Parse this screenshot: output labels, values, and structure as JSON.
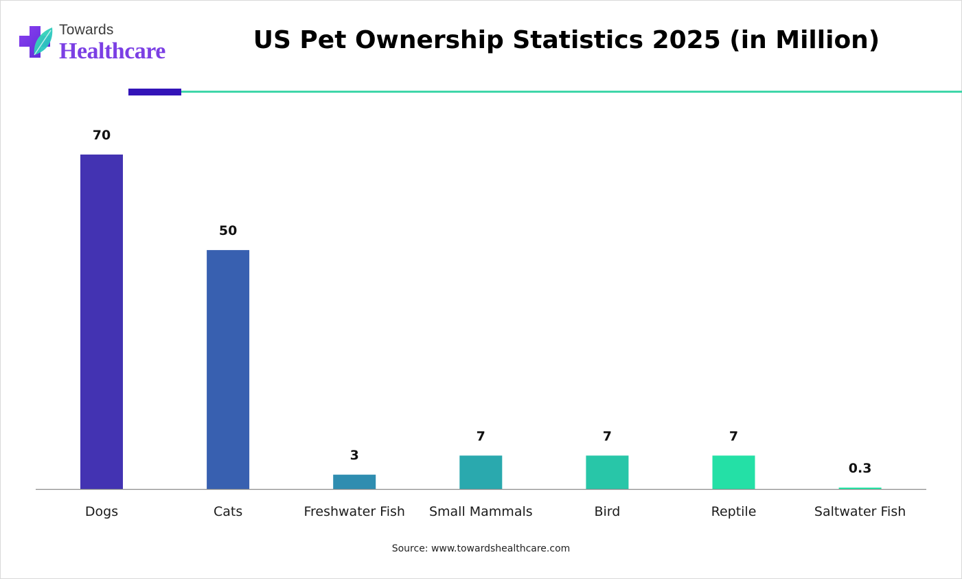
{
  "brand": {
    "towards": "Towards",
    "healthcare": "Healthcare"
  },
  "source": "Source: www.towardshealthcare.com",
  "colors": {
    "accent_purple": "#3314b8",
    "accent_teal": "#3fd6a9",
    "brand_purple": "#7b3fe4"
  },
  "chart_data": {
    "type": "bar",
    "title": "US Pet Ownership Statistics 2025 (in Million)",
    "categories": [
      "Dogs",
      "Cats",
      "Freshwater Fish",
      "Small Mammals",
      "Bird",
      "Reptile",
      "Saltwater Fish"
    ],
    "values": [
      70,
      50,
      3,
      7,
      7,
      7,
      0.3
    ],
    "value_labels": [
      "70",
      "50",
      "3",
      "7",
      "7",
      "7",
      "0.3"
    ],
    "bar_colors": [
      "#4333b2",
      "#3860b0",
      "#2f8db0",
      "#2aa9ae",
      "#28c6a8",
      "#24e0a6",
      "#20e8a6"
    ],
    "xlabel": "",
    "ylabel": "",
    "ylim": [
      0,
      70
    ],
    "grid": false,
    "legend": "none"
  }
}
